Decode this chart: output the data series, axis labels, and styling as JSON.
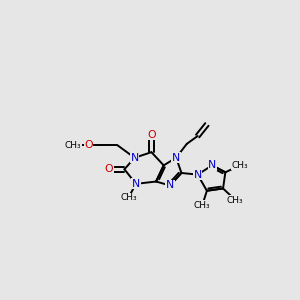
{
  "bg_color": "#e6e6e6",
  "bond_color": "#000000",
  "N_color": "#0000cc",
  "O_color": "#cc0000",
  "bond_width": 1.4,
  "figsize": [
    3.0,
    3.0
  ],
  "dpi": 100,
  "xlim": [
    0,
    10
  ],
  "ylim": [
    0,
    10
  ]
}
